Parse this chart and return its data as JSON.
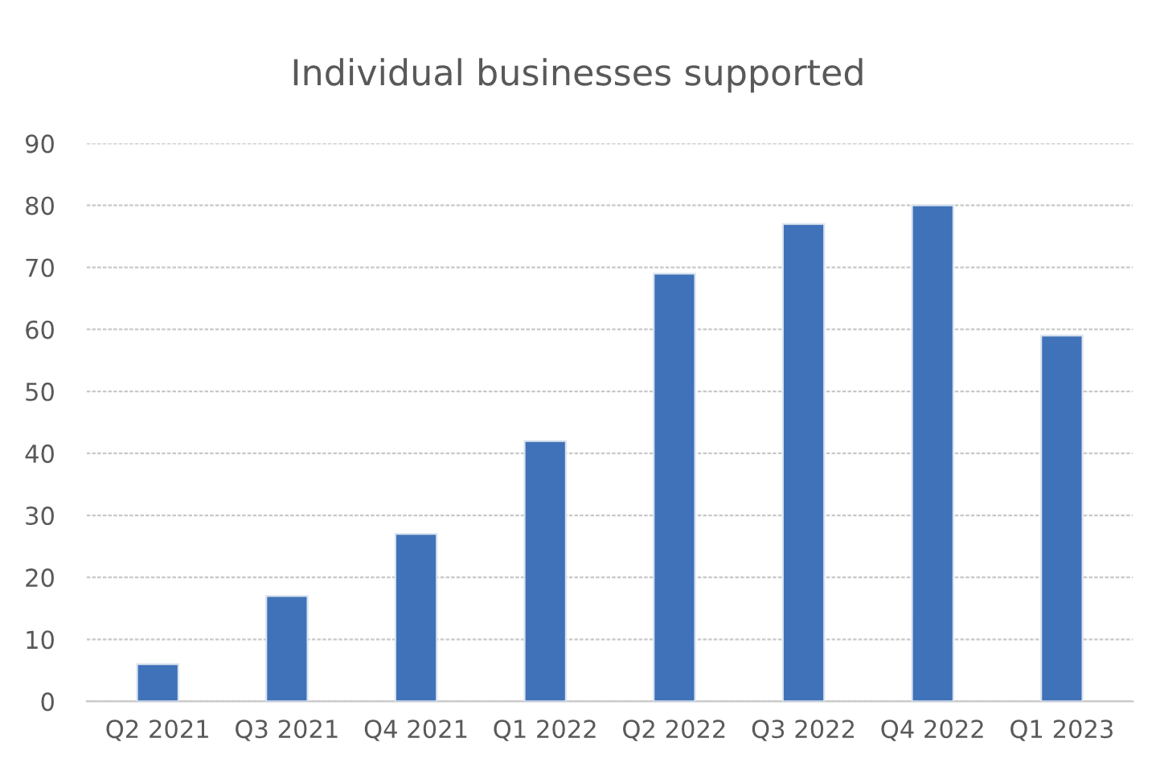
{
  "chart_data": {
    "type": "bar",
    "title": "Individual businesses supported",
    "categories": [
      "Q2 2021",
      "Q3 2021",
      "Q4 2021",
      "Q1 2022",
      "Q2 2022",
      "Q3 2022",
      "Q4 2022",
      "Q1 2023"
    ],
    "values": [
      6,
      17,
      27,
      42,
      69,
      77,
      80,
      59
    ],
    "color": "#3f72b8",
    "ylim": [
      0,
      90
    ],
    "yticks": [
      0,
      10,
      20,
      30,
      40,
      50,
      60,
      70,
      80,
      90
    ],
    "grid": "y"
  }
}
